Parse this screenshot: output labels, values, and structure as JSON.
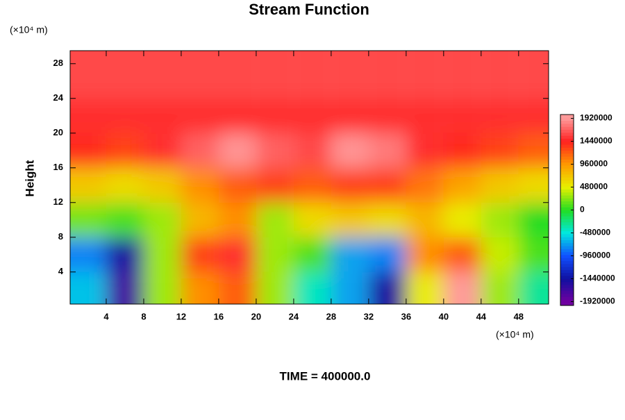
{
  "chart_data": {
    "type": "contour",
    "title": "Stream Function",
    "y_label": "Height",
    "x_unit": "(×10⁴ m)",
    "y_unit": "(×10⁴ m)",
    "footer": "TIME = 400000.0",
    "x": [
      2,
      6,
      10,
      14,
      18,
      22,
      26,
      30,
      34,
      38,
      42,
      46,
      50
    ],
    "y": [
      2,
      6,
      10,
      14,
      18,
      22,
      26
    ],
    "z": [
      [
        -600000,
        -1700000,
        300000,
        1000000,
        1200000,
        300000,
        -400000,
        -700000,
        -1500000,
        500000,
        2000000,
        300000,
        -300000
      ],
      [
        -800000,
        -1500000,
        300000,
        1300000,
        1500000,
        300000,
        100000,
        -700000,
        -800000,
        1000000,
        1200000,
        400000,
        100000
      ],
      [
        200000,
        100000,
        300000,
        800000,
        1000000,
        300000,
        600000,
        700000,
        600000,
        800000,
        500000,
        300000,
        0
      ],
      [
        700000,
        600000,
        700000,
        1000000,
        1200000,
        1300000,
        1200000,
        1300000,
        1300000,
        1100000,
        900000,
        700000,
        600000
      ],
      [
        1400000,
        1300000,
        1500000,
        1700000,
        1900000,
        1700000,
        1600000,
        1900000,
        1800000,
        1500000,
        1400000,
        1300000,
        1200000
      ],
      [
        1500000,
        1500000,
        1500000,
        1500000,
        1500000,
        1500000,
        1500000,
        1500000,
        1500000,
        1500000,
        1500000,
        1500000,
        1500000
      ],
      [
        1600000,
        1600000,
        1600000,
        1600000,
        1600000,
        1600000,
        1600000,
        1600000,
        1600000,
        1600000,
        1600000,
        1600000,
        1600000
      ]
    ],
    "xlim": [
      0.15,
      51.2
    ],
    "ylim": [
      0.3,
      29.5
    ],
    "xticks": [
      4,
      8,
      12,
      16,
      20,
      24,
      28,
      32,
      36,
      40,
      44,
      48
    ],
    "yticks": [
      4,
      8,
      12,
      16,
      20,
      24,
      28
    ],
    "clim": [
      -2000000,
      2000000
    ],
    "cticks": [
      1920000,
      1440000,
      960000,
      480000,
      0,
      -480000,
      -960000,
      -1440000,
      -1920000
    ],
    "ccolors": [
      "#ff9a9a",
      "#ff2020",
      "#ff9900",
      "#e8f000",
      "#22dd22",
      "#00e8e0",
      "#1050ff",
      "#1010a0",
      "#7000a0"
    ]
  }
}
